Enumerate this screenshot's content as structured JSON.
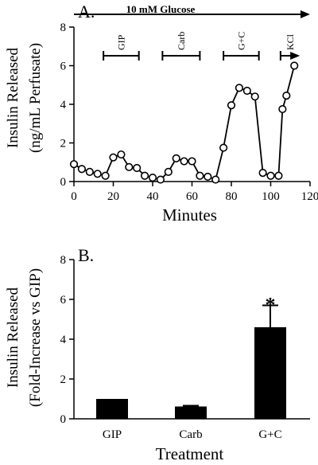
{
  "chart_data": [
    {
      "type": "line",
      "panel_label": "A.",
      "xlabel": "Minutes",
      "ylabel": "Insulin Released",
      "ylabel_line2": "(ng/mL Perfusate)",
      "xlim": [
        0,
        120
      ],
      "ylim": [
        0,
        8
      ],
      "xticks": [
        "0",
        "20",
        "40",
        "60",
        "80",
        "100",
        "120"
      ],
      "yticks": [
        "0",
        "2",
        "4",
        "6",
        "8"
      ],
      "grid": false,
      "glucose_label": "10 mM Glucose",
      "treatment_bars": [
        {
          "label": "GIP",
          "start": 15,
          "end": 33
        },
        {
          "label": "Carb",
          "start": 45,
          "end": 64
        },
        {
          "label": "G+C",
          "start": 76,
          "end": 94
        },
        {
          "label": "KCl",
          "start": 105,
          "end": 114
        }
      ],
      "x": [
        0,
        4,
        8,
        12,
        16,
        20,
        24,
        28,
        32,
        36,
        40,
        44,
        48,
        52,
        56,
        60,
        64,
        68,
        72,
        76,
        80,
        84,
        88,
        92,
        96,
        100,
        104,
        106,
        108,
        112
      ],
      "y": [
        0.9,
        0.65,
        0.5,
        0.4,
        0.3,
        1.25,
        1.4,
        0.75,
        0.7,
        0.3,
        0.2,
        0.1,
        0.5,
        1.2,
        1.05,
        1.05,
        0.3,
        0.25,
        0.1,
        1.75,
        3.95,
        4.85,
        4.7,
        4.4,
        0.45,
        0.3,
        0.3,
        3.75,
        4.45,
        6.0
      ]
    },
    {
      "type": "bar",
      "panel_label": "B.",
      "xlabel": "Treatment",
      "ylabel": "Insulin Released",
      "ylabel_line2": "(Fold-Increase vs GIP)",
      "categories": [
        "GIP",
        "Carb",
        "G+C"
      ],
      "values": [
        1.0,
        0.62,
        4.6
      ],
      "errors": [
        0.0,
        0.04,
        1.1
      ],
      "significance": [
        "",
        "",
        "*"
      ],
      "ylim": [
        0,
        8
      ],
      "yticks": [
        "0",
        "2",
        "4",
        "6",
        "8"
      ],
      "grid": false,
      "bar_color": "#000000"
    }
  ]
}
